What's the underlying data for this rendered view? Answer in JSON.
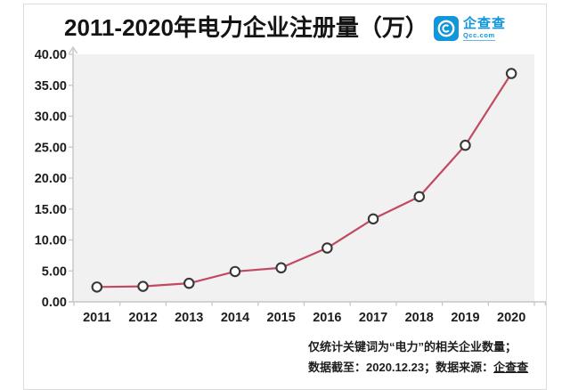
{
  "page": {
    "title": "2011-2020年电力企业注册量（万）"
  },
  "brand": {
    "name": "企查查",
    "domain": "Qcc.com",
    "color": "#1296db"
  },
  "footer": {
    "line1": "仅统计关键词为“电力”的相关企业数量；",
    "line2_prefix": "数据截至：2020.12.23；数据来源：",
    "line2_source": "企查查"
  },
  "chart_data": {
    "type": "line",
    "title": "2011-2020年电力企业注册量（万）",
    "categories": [
      "2011",
      "2012",
      "2013",
      "2014",
      "2015",
      "2016",
      "2017",
      "2018",
      "2019",
      "2020"
    ],
    "series": [
      {
        "name": "电力企业注册量（万）",
        "values": [
          2.4,
          2.5,
          3.0,
          4.9,
          5.5,
          8.7,
          13.4,
          17.0,
          25.3,
          36.9
        ]
      }
    ],
    "ylim": [
      0,
      40
    ],
    "ytick_labels": [
      "0.00",
      "5.00",
      "10.00",
      "15.00",
      "20.00",
      "25.00",
      "30.00",
      "35.00",
      "40.00"
    ],
    "grid": false,
    "legend": false,
    "line_color": "#c14a60",
    "marker_fill": "#ffffff",
    "marker_stroke": "#383838",
    "plot_bg": "#f1f1f2",
    "axis_color": "#c6c6c6"
  }
}
